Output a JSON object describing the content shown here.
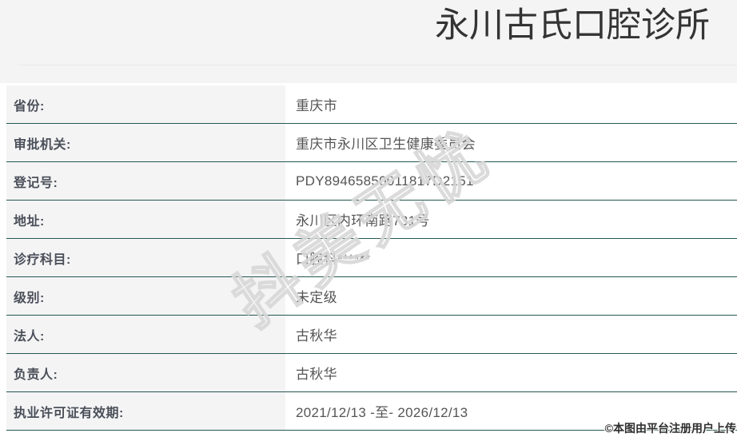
{
  "header": {
    "title": "永川古氏口腔诊所"
  },
  "table": {
    "rows": [
      {
        "label": "省份:",
        "value": "重庆市"
      },
      {
        "label": "审批机关:",
        "value": "重庆市永川区卫生健康委员会"
      },
      {
        "label": "登记号:",
        "value": "PDY89465850011817D2151"
      },
      {
        "label": "地址:",
        "value": "永川区内环南路731号"
      },
      {
        "label": "诊疗科目:",
        "value": "口腔科******"
      },
      {
        "label": "级别:",
        "value": "未定级"
      },
      {
        "label": "法人:",
        "value": "古秋华"
      },
      {
        "label": "负责人:",
        "value": "古秋华"
      },
      {
        "label": "执业许可证有效期:",
        "value": "2021/12/13 -至- 2026/12/13"
      }
    ]
  },
  "watermark": {
    "text": "抖美无忧"
  },
  "footer": {
    "copyright": "©本图由平台注册用户上传"
  },
  "colors": {
    "divider": "#24584f",
    "header_bg": "#f4f4f5",
    "label_bg": "#f4f4f5"
  }
}
